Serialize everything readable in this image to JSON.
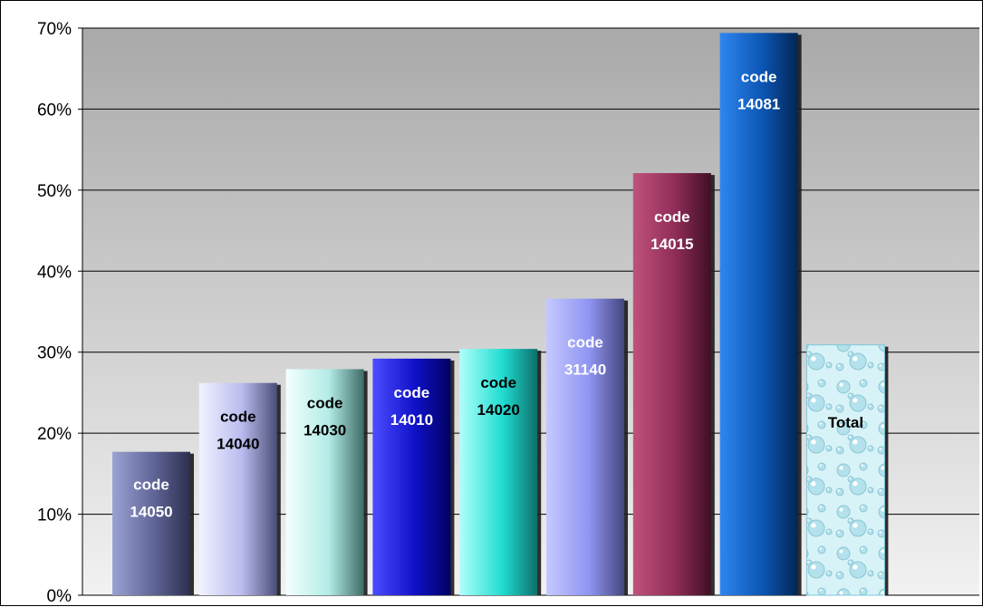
{
  "chart_data": {
    "type": "bar",
    "title": "",
    "xlabel": "",
    "ylabel": "",
    "ylim": [
      0,
      70
    ],
    "y_tick_step": 10,
    "y_tick_format": "percent",
    "grid": true,
    "legend": "none",
    "categories": [
      "code 14050",
      "code 14040",
      "code 14030",
      "code 14010",
      "code 14020",
      "code 31140",
      "code 14015",
      "code 14081",
      "Total"
    ],
    "values": [
      17.7,
      26.2,
      27.9,
      29.2,
      30.4,
      36.6,
      52.1,
      69.4,
      30.9
    ],
    "bar_labels": [
      [
        "code",
        "14050"
      ],
      [
        "code",
        "14040"
      ],
      [
        "code",
        "14030"
      ],
      [
        "code",
        "14010"
      ],
      [
        "code",
        "14020"
      ],
      [
        "code",
        "31140"
      ],
      [
        "code",
        "14015"
      ],
      [
        "code",
        "14081"
      ],
      [
        "Total"
      ]
    ],
    "bar_colors": [
      {
        "light": "#9aa2d4",
        "mid": "#5d6394",
        "dark": "#2d2f4e",
        "text": "#ffffff"
      },
      {
        "light": "#f2f3ff",
        "mid": "#b9bbef",
        "dark": "#4b4d77",
        "text": "#000000"
      },
      {
        "light": "#f3fffe",
        "mid": "#b3ece6",
        "dark": "#3f6c67",
        "text": "#000000"
      },
      {
        "light": "#4b4bff",
        "mid": "#1010c8",
        "dark": "#000060",
        "text": "#ffffff"
      },
      {
        "light": "#b0fffb",
        "mid": "#20ddd2",
        "dark": "#0d6f6a",
        "text": "#000000"
      },
      {
        "light": "#c5c9ff",
        "mid": "#8f94f2",
        "dark": "#44477d",
        "text": "#ffffff"
      },
      {
        "light": "#c0527c",
        "mid": "#8e2c57",
        "dark": "#3f0f24",
        "text": "#ffffff"
      },
      {
        "light": "#2e86f0",
        "mid": "#0b55b3",
        "dark": "#022654",
        "text": "#ffffff"
      },
      {
        "light": "#e6fbff",
        "mid": "#bfeaf2",
        "dark": "#8fc9d6",
        "text": "#000000"
      }
    ],
    "plot_background": [
      "#a9a9a9",
      "#f2f2f2"
    ]
  }
}
